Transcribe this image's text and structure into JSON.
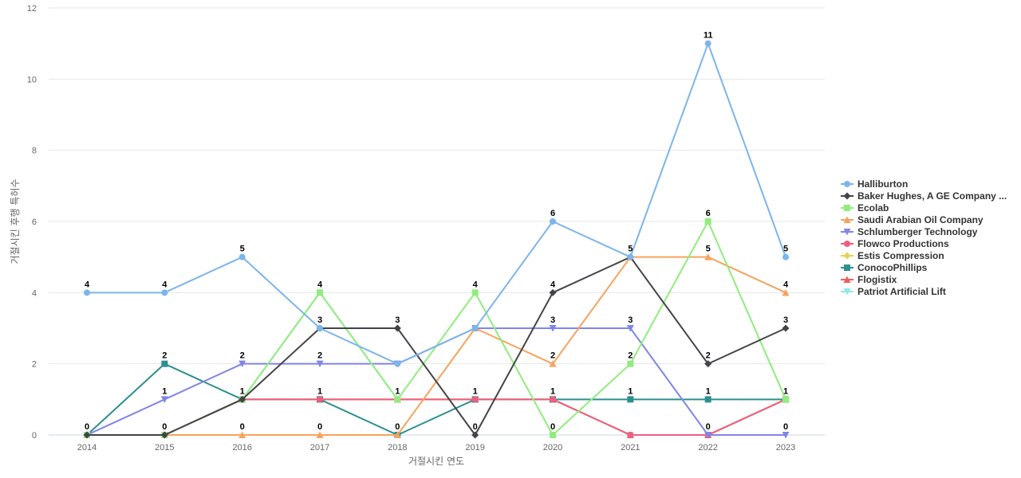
{
  "chart_data": {
    "type": "line",
    "title": "",
    "xlabel": "거절시킨 연도",
    "ylabel": "거절시킨 후행 특허수",
    "x": [
      "2014",
      "2015",
      "2016",
      "2017",
      "2018",
      "2019",
      "2020",
      "2021",
      "2022",
      "2023"
    ],
    "ylim": [
      0,
      12
    ],
    "yticks": [
      0,
      2,
      4,
      6,
      8,
      10,
      12
    ],
    "grid": true,
    "legend_position": "right",
    "series": [
      {
        "name": "Halliburton",
        "color": "#7cb5ec",
        "marker": "circle",
        "values": [
          4,
          4,
          5,
          3,
          2,
          3,
          6,
          5,
          11,
          5
        ],
        "labels": [
          true,
          true,
          true,
          false,
          false,
          false,
          true,
          true,
          true,
          true
        ]
      },
      {
        "name": "Baker Hughes, A GE Company ...",
        "color": "#434348",
        "marker": "diamond",
        "values": [
          0,
          0,
          1,
          3,
          3,
          0,
          4,
          5,
          2,
          3
        ],
        "labels": [
          false,
          false,
          false,
          true,
          true,
          true,
          true,
          false,
          true,
          true
        ]
      },
      {
        "name": "Ecolab",
        "color": "#90ed7d",
        "marker": "square",
        "values": [
          0,
          0,
          1,
          4,
          1,
          4,
          0,
          2,
          6,
          1
        ],
        "labels": [
          false,
          false,
          false,
          true,
          false,
          true,
          true,
          true,
          true,
          false
        ]
      },
      {
        "name": "Saudi Arabian Oil Company",
        "color": "#f7a35c",
        "marker": "triangle",
        "values": [
          0,
          0,
          0,
          0,
          0,
          3,
          2,
          5,
          5,
          4
        ],
        "labels": [
          false,
          true,
          true,
          true,
          true,
          false,
          true,
          false,
          true,
          true
        ]
      },
      {
        "name": "Schlumberger Technology",
        "color": "#8085e9",
        "marker": "triangle-down",
        "values": [
          0,
          1,
          2,
          2,
          2,
          3,
          3,
          3,
          0,
          0
        ],
        "labels": [
          true,
          true,
          true,
          true,
          false,
          false,
          true,
          true,
          true,
          true
        ]
      },
      {
        "name": "Flowco Productions",
        "color": "#f15c80",
        "marker": "circle",
        "values": [
          0,
          0,
          1,
          1,
          1,
          1,
          1,
          0,
          0,
          1
        ],
        "labels": [
          false,
          false,
          false,
          false,
          false,
          false,
          false,
          false,
          false,
          false
        ]
      },
      {
        "name": "Estis Compression",
        "color": "#e4d354",
        "marker": "diamond",
        "values": [
          0,
          0,
          1,
          1,
          1,
          1,
          1,
          0,
          0,
          1
        ],
        "labels": [
          false,
          false,
          false,
          false,
          false,
          false,
          false,
          false,
          false,
          false
        ]
      },
      {
        "name": "ConocoPhillips",
        "color": "#2b908f",
        "marker": "square",
        "values": [
          0,
          2,
          1,
          1,
          0,
          1,
          1,
          1,
          1,
          1
        ],
        "labels": [
          false,
          true,
          true,
          true,
          false,
          true,
          true,
          true,
          true,
          true
        ]
      },
      {
        "name": "Flogistix",
        "color": "#f45b5b",
        "marker": "triangle",
        "values": [
          0,
          0,
          1,
          1,
          1,
          1,
          1,
          0,
          0,
          1
        ],
        "labels": [
          false,
          false,
          false,
          false,
          false,
          false,
          false,
          false,
          false,
          false
        ]
      },
      {
        "name": "Patriot Artificial Lift",
        "color": "#91e8e1",
        "marker": "triangle-down",
        "values": [
          0,
          0,
          1,
          4,
          1,
          1,
          1,
          0,
          0,
          1
        ],
        "labels": [
          false,
          false,
          false,
          false,
          true,
          false,
          false,
          false,
          false,
          false
        ]
      }
    ]
  }
}
